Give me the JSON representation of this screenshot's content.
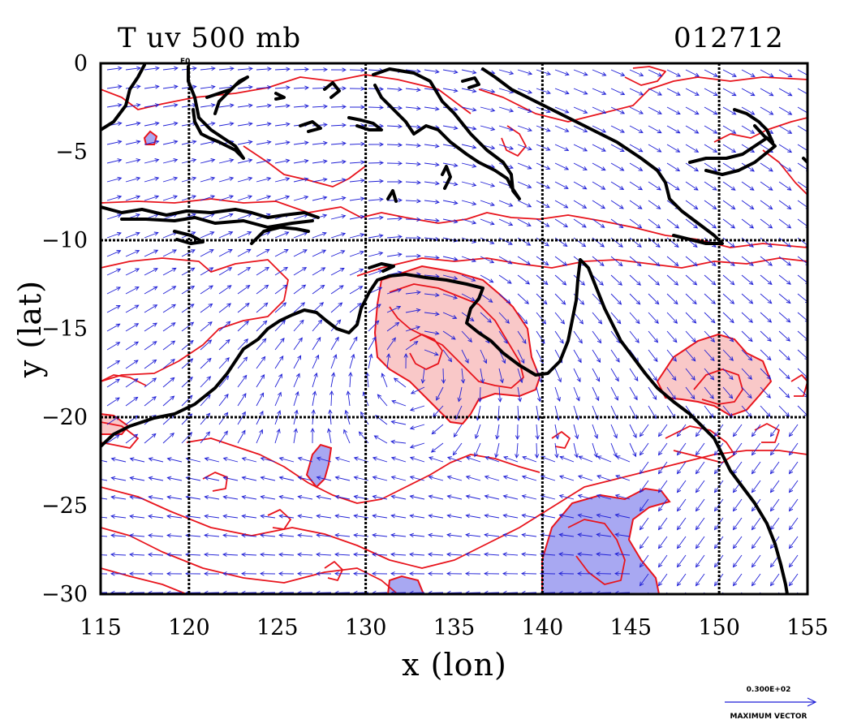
{
  "header": {
    "title": "T uv 500 mb",
    "timestamp": "012712"
  },
  "corner_label": "E0",
  "axes": {
    "xlabel": "x (lon)",
    "ylabel": "y (lat)",
    "xlim": [
      115,
      155
    ],
    "ylim": [
      -30,
      0
    ],
    "xticks": [
      {
        "value": 115,
        "label": "115"
      },
      {
        "value": 120,
        "label": "120"
      },
      {
        "value": 125,
        "label": "125"
      },
      {
        "value": 130,
        "label": "130"
      },
      {
        "value": 135,
        "label": "135"
      },
      {
        "value": 140,
        "label": "140"
      },
      {
        "value": 145,
        "label": "145"
      },
      {
        "value": 150,
        "label": "150"
      },
      {
        "value": 155,
        "label": "155"
      }
    ],
    "yticks": [
      {
        "value": 0,
        "label": "0"
      },
      {
        "value": -5,
        "label": "−5"
      },
      {
        "value": -10,
        "label": "−10"
      },
      {
        "value": -15,
        "label": "−15"
      },
      {
        "value": -20,
        "label": "−20"
      },
      {
        "value": -25,
        "label": "−25"
      },
      {
        "value": -30,
        "label": "−30"
      }
    ],
    "grid_lon": [
      120,
      130,
      140,
      150
    ],
    "grid_lat": [
      -10,
      -20
    ]
  },
  "legend": {
    "magnitude": "0.300E+02",
    "caption": "MAXIMUM VECTOR"
  },
  "colors": {
    "coast": "#000000",
    "contour": "#e8141c",
    "vector": "#1f1fd6",
    "warm_fill": "#f9c8c8",
    "cool_fill": "#a8a8f2",
    "grid": "#000000"
  },
  "map_layers": {
    "coastline": "black thick lines",
    "temperature_contours": "red lines",
    "wind_vectors": "blue arrows",
    "shaded_warm": "light red fill",
    "shaded_cool": "light blue fill"
  }
}
